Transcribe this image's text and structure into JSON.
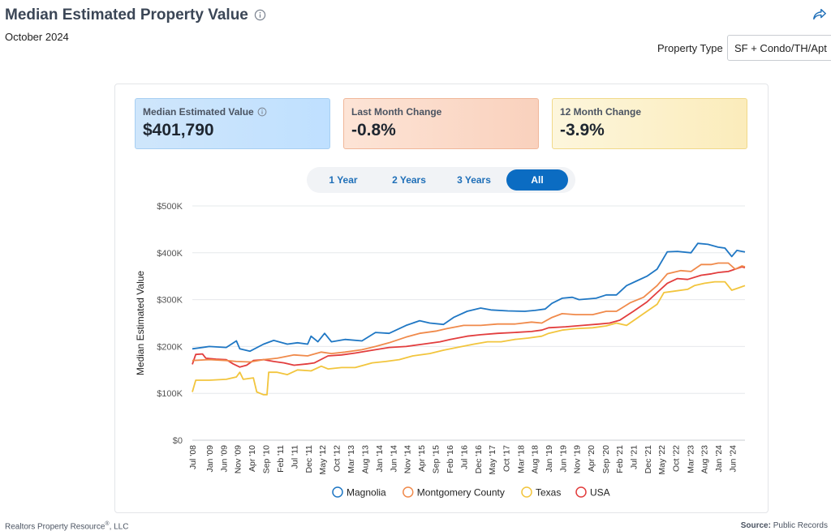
{
  "header": {
    "title": "Median Estimated Property Value",
    "date": "October 2024",
    "property_type_label": "Property Type",
    "property_type_value": "SF + Condo/TH/Apt"
  },
  "cards": {
    "median": {
      "label": "Median Estimated Value",
      "value": "$401,790"
    },
    "last_month": {
      "label": "Last Month Change",
      "value": "-0.8%"
    },
    "twelve_month": {
      "label": "12 Month Change",
      "value": "-3.9%"
    }
  },
  "range_tabs": [
    {
      "label": "1 Year",
      "active": false
    },
    {
      "label": "2 Years",
      "active": false
    },
    {
      "label": "3 Years",
      "active": false
    },
    {
      "label": "All",
      "active": true
    }
  ],
  "footer": {
    "company": "Realtors Property Resource",
    "company_suffix": ", LLC",
    "source_label": "Source:",
    "source_value": "Public Records"
  },
  "chart_data": {
    "type": "line",
    "title": "Median Estimated Property Value",
    "ylabel": "Median Estimated Value",
    "xlabel": "",
    "ylim": [
      0,
      500000
    ],
    "xlim": [
      2008.5,
      2024.79
    ],
    "y_ticks": [
      {
        "value": 0,
        "label": "$0"
      },
      {
        "value": 100000,
        "label": "$100K"
      },
      {
        "value": 200000,
        "label": "$200K"
      },
      {
        "value": 300000,
        "label": "$300K"
      },
      {
        "value": 400000,
        "label": "$400K"
      },
      {
        "value": 500000,
        "label": "$500K"
      }
    ],
    "x_ticks": [
      {
        "t": 2008.5,
        "label": "Jul '08"
      },
      {
        "t": 2009.0,
        "label": "Jan '09"
      },
      {
        "t": 2009.42,
        "label": "Jun '09"
      },
      {
        "t": 2009.83,
        "label": "Nov '09"
      },
      {
        "t": 2010.25,
        "label": "Apr '10"
      },
      {
        "t": 2010.67,
        "label": "Sep '10"
      },
      {
        "t": 2011.08,
        "label": "Feb '11"
      },
      {
        "t": 2011.5,
        "label": "Jul '11"
      },
      {
        "t": 2011.92,
        "label": "Dec '11"
      },
      {
        "t": 2012.33,
        "label": "May '12"
      },
      {
        "t": 2012.75,
        "label": "Oct '12"
      },
      {
        "t": 2013.17,
        "label": "Mar '13"
      },
      {
        "t": 2013.58,
        "label": "Aug '13"
      },
      {
        "t": 2014.0,
        "label": "Jan '14"
      },
      {
        "t": 2014.42,
        "label": "Jun '14"
      },
      {
        "t": 2014.83,
        "label": "Nov '14"
      },
      {
        "t": 2015.25,
        "label": "Apr '15"
      },
      {
        "t": 2015.67,
        "label": "Sep '15"
      },
      {
        "t": 2016.08,
        "label": "Feb '16"
      },
      {
        "t": 2016.5,
        "label": "Jul '16"
      },
      {
        "t": 2016.92,
        "label": "Dec '16"
      },
      {
        "t": 2017.33,
        "label": "May '17"
      },
      {
        "t": 2017.75,
        "label": "Oct '17"
      },
      {
        "t": 2018.17,
        "label": "Mar '18"
      },
      {
        "t": 2018.58,
        "label": "Aug '18"
      },
      {
        "t": 2019.0,
        "label": "Jan '19"
      },
      {
        "t": 2019.42,
        "label": "Jun '19"
      },
      {
        "t": 2019.83,
        "label": "Nov '19"
      },
      {
        "t": 2020.25,
        "label": "Apr '20"
      },
      {
        "t": 2020.67,
        "label": "Sep '20"
      },
      {
        "t": 2021.08,
        "label": "Feb '21"
      },
      {
        "t": 2021.5,
        "label": "Jul '21"
      },
      {
        "t": 2021.92,
        "label": "Dec '21"
      },
      {
        "t": 2022.33,
        "label": "May '22"
      },
      {
        "t": 2022.75,
        "label": "Oct '22"
      },
      {
        "t": 2023.17,
        "label": "Mar '23"
      },
      {
        "t": 2023.58,
        "label": "Aug '23"
      },
      {
        "t": 2024.0,
        "label": "Jan '24"
      },
      {
        "t": 2024.42,
        "label": "Jun '24"
      }
    ],
    "legend_position": "bottom-center",
    "series": [
      {
        "name": "Magnolia",
        "color": "#1f77c4",
        "points": [
          [
            2008.5,
            195000
          ],
          [
            2009.0,
            200000
          ],
          [
            2009.5,
            198000
          ],
          [
            2009.8,
            212000
          ],
          [
            2009.9,
            195000
          ],
          [
            2010.2,
            190000
          ],
          [
            2010.6,
            205000
          ],
          [
            2010.9,
            213000
          ],
          [
            2011.3,
            205000
          ],
          [
            2011.6,
            208000
          ],
          [
            2011.9,
            205000
          ],
          [
            2012.0,
            222000
          ],
          [
            2012.2,
            210000
          ],
          [
            2012.4,
            228000
          ],
          [
            2012.6,
            210000
          ],
          [
            2013.0,
            215000
          ],
          [
            2013.5,
            212000
          ],
          [
            2013.9,
            230000
          ],
          [
            2014.3,
            228000
          ],
          [
            2014.8,
            245000
          ],
          [
            2015.2,
            255000
          ],
          [
            2015.5,
            250000
          ],
          [
            2015.9,
            247000
          ],
          [
            2016.2,
            262000
          ],
          [
            2016.6,
            275000
          ],
          [
            2017.0,
            282000
          ],
          [
            2017.3,
            278000
          ],
          [
            2017.8,
            276000
          ],
          [
            2018.3,
            275000
          ],
          [
            2018.6,
            277000
          ],
          [
            2018.9,
            280000
          ],
          [
            2019.1,
            292000
          ],
          [
            2019.4,
            303000
          ],
          [
            2019.7,
            305000
          ],
          [
            2019.9,
            300000
          ],
          [
            2020.4,
            303000
          ],
          [
            2020.7,
            310000
          ],
          [
            2021.0,
            310000
          ],
          [
            2021.3,
            330000
          ],
          [
            2021.6,
            340000
          ],
          [
            2021.9,
            350000
          ],
          [
            2022.2,
            365000
          ],
          [
            2022.5,
            402000
          ],
          [
            2022.8,
            403000
          ],
          [
            2023.2,
            400000
          ],
          [
            2023.4,
            420000
          ],
          [
            2023.7,
            418000
          ],
          [
            2024.0,
            412000
          ],
          [
            2024.2,
            410000
          ],
          [
            2024.4,
            392000
          ],
          [
            2024.55,
            405000
          ],
          [
            2024.7,
            403000
          ],
          [
            2024.79,
            401790
          ]
        ]
      },
      {
        "name": "Montgomery County",
        "color": "#f08a4b",
        "points": [
          [
            2008.5,
            170000
          ],
          [
            2009.0,
            172000
          ],
          [
            2009.5,
            170000
          ],
          [
            2009.8,
            168000
          ],
          [
            2010.2,
            167000
          ],
          [
            2010.6,
            172000
          ],
          [
            2011.0,
            175000
          ],
          [
            2011.5,
            182000
          ],
          [
            2011.9,
            180000
          ],
          [
            2012.3,
            188000
          ],
          [
            2012.6,
            185000
          ],
          [
            2013.0,
            188000
          ],
          [
            2013.5,
            193000
          ],
          [
            2013.9,
            200000
          ],
          [
            2014.3,
            208000
          ],
          [
            2014.8,
            220000
          ],
          [
            2015.2,
            228000
          ],
          [
            2015.7,
            233000
          ],
          [
            2016.0,
            238000
          ],
          [
            2016.5,
            245000
          ],
          [
            2017.0,
            245000
          ],
          [
            2017.5,
            248000
          ],
          [
            2018.0,
            248000
          ],
          [
            2018.5,
            252000
          ],
          [
            2018.8,
            250000
          ],
          [
            2019.1,
            262000
          ],
          [
            2019.4,
            270000
          ],
          [
            2019.8,
            268000
          ],
          [
            2020.3,
            268000
          ],
          [
            2020.7,
            275000
          ],
          [
            2021.0,
            275000
          ],
          [
            2021.4,
            293000
          ],
          [
            2021.8,
            305000
          ],
          [
            2022.2,
            330000
          ],
          [
            2022.5,
            355000
          ],
          [
            2022.9,
            362000
          ],
          [
            2023.2,
            360000
          ],
          [
            2023.5,
            375000
          ],
          [
            2023.8,
            375000
          ],
          [
            2024.0,
            378000
          ],
          [
            2024.3,
            378000
          ],
          [
            2024.5,
            365000
          ],
          [
            2024.7,
            372000
          ],
          [
            2024.79,
            370000
          ]
        ]
      },
      {
        "name": "Texas",
        "color": "#f2c53d",
        "points": [
          [
            2008.5,
            103000
          ],
          [
            2008.6,
            128000
          ],
          [
            2009.0,
            128000
          ],
          [
            2009.5,
            130000
          ],
          [
            2009.8,
            135000
          ],
          [
            2009.9,
            145000
          ],
          [
            2010.0,
            130000
          ],
          [
            2010.3,
            133000
          ],
          [
            2010.4,
            103000
          ],
          [
            2010.6,
            97000
          ],
          [
            2010.7,
            97000
          ],
          [
            2010.75,
            145000
          ],
          [
            2011.0,
            145000
          ],
          [
            2011.3,
            140000
          ],
          [
            2011.6,
            150000
          ],
          [
            2012.0,
            148000
          ],
          [
            2012.3,
            158000
          ],
          [
            2012.5,
            152000
          ],
          [
            2012.9,
            155000
          ],
          [
            2013.3,
            155000
          ],
          [
            2013.8,
            165000
          ],
          [
            2014.2,
            168000
          ],
          [
            2014.6,
            172000
          ],
          [
            2015.0,
            180000
          ],
          [
            2015.5,
            185000
          ],
          [
            2015.9,
            192000
          ],
          [
            2016.3,
            198000
          ],
          [
            2016.8,
            205000
          ],
          [
            2017.2,
            210000
          ],
          [
            2017.6,
            210000
          ],
          [
            2018.0,
            215000
          ],
          [
            2018.4,
            218000
          ],
          [
            2018.8,
            222000
          ],
          [
            2019.0,
            228000
          ],
          [
            2019.4,
            235000
          ],
          [
            2019.8,
            238000
          ],
          [
            2020.3,
            240000
          ],
          [
            2020.7,
            244000
          ],
          [
            2021.0,
            250000
          ],
          [
            2021.3,
            245000
          ],
          [
            2021.6,
            260000
          ],
          [
            2021.9,
            275000
          ],
          [
            2022.2,
            290000
          ],
          [
            2022.4,
            315000
          ],
          [
            2022.7,
            318000
          ],
          [
            2023.1,
            322000
          ],
          [
            2023.3,
            330000
          ],
          [
            2023.6,
            335000
          ],
          [
            2023.9,
            338000
          ],
          [
            2024.2,
            338000
          ],
          [
            2024.4,
            320000
          ],
          [
            2024.6,
            325000
          ],
          [
            2024.79,
            330000
          ]
        ]
      },
      {
        "name": "USA",
        "color": "#e23d3d",
        "points": [
          [
            2008.5,
            162000
          ],
          [
            2008.6,
            183000
          ],
          [
            2008.8,
            184000
          ],
          [
            2008.9,
            175000
          ],
          [
            2009.2,
            173000
          ],
          [
            2009.5,
            172000
          ],
          [
            2009.7,
            163000
          ],
          [
            2009.9,
            156000
          ],
          [
            2010.1,
            160000
          ],
          [
            2010.3,
            170000
          ],
          [
            2010.6,
            172000
          ],
          [
            2010.9,
            168000
          ],
          [
            2011.2,
            165000
          ],
          [
            2011.5,
            160000
          ],
          [
            2011.9,
            163000
          ],
          [
            2012.1,
            165000
          ],
          [
            2012.5,
            180000
          ],
          [
            2012.9,
            182000
          ],
          [
            2013.3,
            186000
          ],
          [
            2013.8,
            192000
          ],
          [
            2014.3,
            198000
          ],
          [
            2014.8,
            200000
          ],
          [
            2015.3,
            205000
          ],
          [
            2015.8,
            210000
          ],
          [
            2016.1,
            215000
          ],
          [
            2016.6,
            222000
          ],
          [
            2017.0,
            225000
          ],
          [
            2017.5,
            228000
          ],
          [
            2018.0,
            230000
          ],
          [
            2018.5,
            232000
          ],
          [
            2018.8,
            235000
          ],
          [
            2019.0,
            240000
          ],
          [
            2019.5,
            242000
          ],
          [
            2020.0,
            245000
          ],
          [
            2020.5,
            248000
          ],
          [
            2020.8,
            250000
          ],
          [
            2021.1,
            256000
          ],
          [
            2021.5,
            275000
          ],
          [
            2021.9,
            295000
          ],
          [
            2022.2,
            315000
          ],
          [
            2022.5,
            335000
          ],
          [
            2022.8,
            345000
          ],
          [
            2023.1,
            343000
          ],
          [
            2023.5,
            352000
          ],
          [
            2023.8,
            355000
          ],
          [
            2024.0,
            358000
          ],
          [
            2024.3,
            360000
          ],
          [
            2024.5,
            365000
          ],
          [
            2024.7,
            370000
          ],
          [
            2024.79,
            368000
          ]
        ]
      }
    ]
  }
}
